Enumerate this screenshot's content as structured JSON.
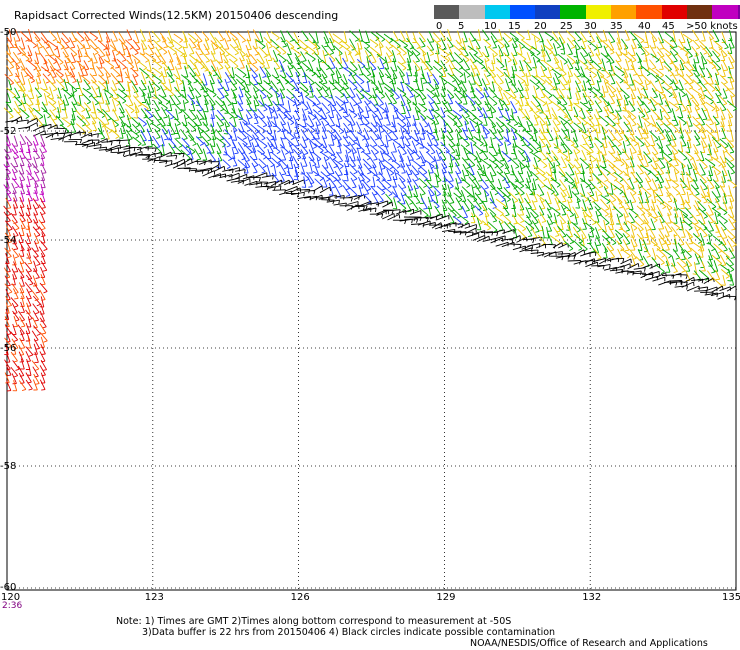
{
  "title": "Rapidsact Corrected Winds(12.5KM) 20150406 descending",
  "legend": {
    "colors": [
      "#5a5a5a",
      "#bdbdbd",
      "#00c8f0",
      "#0050ff",
      "#1040c0",
      "#00b400",
      "#f0f000",
      "#ffa000",
      "#ff5000",
      "#e00000",
      "#703010",
      "#c000c0",
      "#8000a0"
    ],
    "labels": [
      "0",
      "5",
      "10",
      "15",
      "20",
      "25",
      "30",
      "35",
      "40",
      "45",
      ">50 knots"
    ]
  },
  "axes": {
    "lon_ticks": [
      "120",
      "123",
      "126",
      "129",
      "132",
      "135"
    ],
    "lat_ticks": [
      "-50",
      "-52",
      "-54",
      "-56",
      "-58",
      "-60"
    ],
    "lon_range": [
      120,
      135
    ],
    "lat_range": [
      -60,
      -50
    ]
  },
  "time_label": "2:36",
  "notes": {
    "line1": "Note: 1) Times are GMT 2)Times along bottom correspond to measurement at -50S",
    "line2": "3)Data buffer is 22 hrs from 20150406 4) Black circles indicate possible contamination"
  },
  "credit": "NOAA/NESDIS/Office of Research and Applications",
  "wind_field": {
    "description_colors": {
      "low": "#0050ff",
      "mid": "#00b400",
      "high": "#f0c000",
      "higher": "#ffa000",
      "strong": "#ff5000",
      "very_strong": "#e00000",
      "extreme": "#c000c0",
      "contaminated": "#000000"
    }
  }
}
